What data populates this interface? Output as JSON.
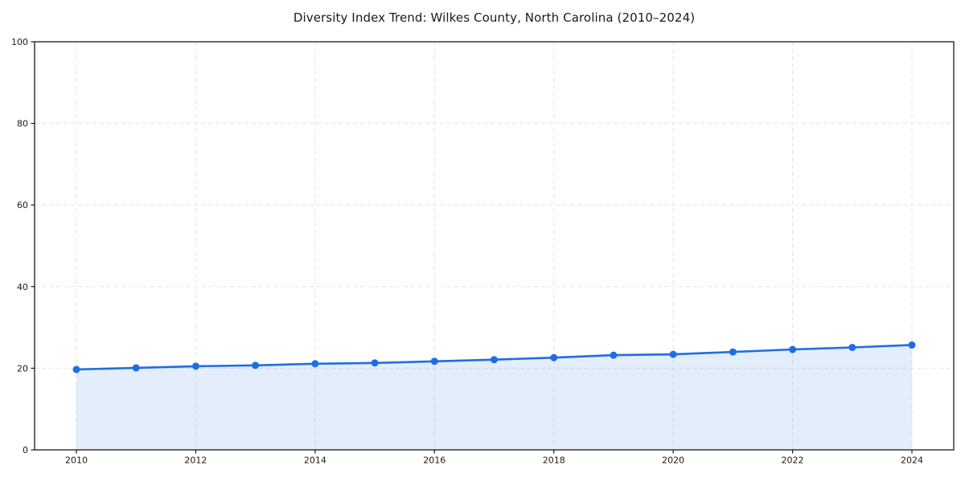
{
  "chart_data": {
    "type": "line",
    "title": "Diversity Index Trend: Wilkes County, North Carolina (2010–2024)",
    "x": [
      2010,
      2011,
      2012,
      2013,
      2014,
      2015,
      2016,
      2017,
      2018,
      2019,
      2020,
      2021,
      2022,
      2023,
      2024
    ],
    "values": [
      19.7,
      20.1,
      20.5,
      20.7,
      21.1,
      21.3,
      21.7,
      22.1,
      22.6,
      23.2,
      23.4,
      24.0,
      24.6,
      25.1,
      25.7
    ],
    "xticks": [
      2010,
      2012,
      2014,
      2016,
      2018,
      2020,
      2022,
      2024
    ],
    "yticks": [
      0,
      20,
      40,
      60,
      80,
      100
    ],
    "ylim": [
      0,
      100
    ],
    "xlabel": "",
    "ylabel": "",
    "grid": true,
    "grid_style": "dashed",
    "legend": "none",
    "marker": "circle",
    "area_fill": true,
    "style": {
      "line_color": "#1f6de4",
      "marker_color": "#1f6de4",
      "fill_color": "#1f6de4",
      "fill_opacity": 0.12,
      "grid_color": "#e3e3e3",
      "axis_color": "#1a1a1a",
      "text_color": "#1a1a1a",
      "background": "#ffffff"
    }
  }
}
